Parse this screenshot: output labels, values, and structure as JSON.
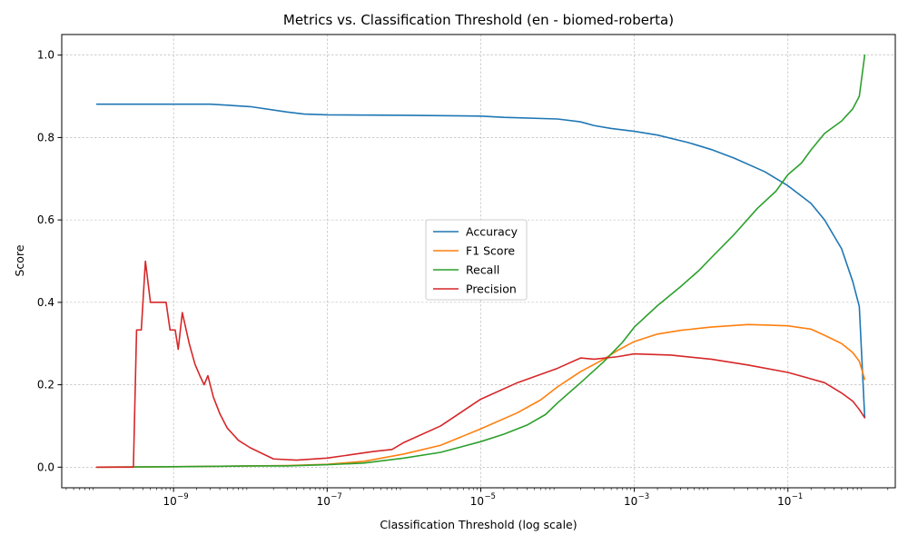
{
  "chart_data": {
    "type": "line",
    "title": "Metrics vs. Classification Threshold (en - biomed-roberta)",
    "xlabel": "Classification Threshold (log scale)",
    "ylabel": "Score",
    "xscale": "log",
    "xlim": [
      3.5e-11,
      2.5
    ],
    "ylim": [
      -0.05,
      1.05
    ],
    "grid": true,
    "legend_position": "center",
    "x_ticks": [
      {
        "value": 1e-09,
        "label": "10"
      },
      {
        "value": 1e-07,
        "label": "10"
      },
      {
        "value": 1e-05,
        "label": "10"
      },
      {
        "value": 0.001,
        "label": "10"
      },
      {
        "value": 0.1,
        "label": "10"
      }
    ],
    "x_tick_exponents": [
      "−9",
      "−7",
      "−5",
      "−3",
      "−1"
    ],
    "y_ticks": [
      "0.0",
      "0.2",
      "0.4",
      "0.6",
      "0.8",
      "1.0"
    ],
    "series": [
      {
        "name": "Accuracy",
        "color": "#1f77b4",
        "points": [
          [
            1e-10,
            0.881
          ],
          [
            1e-09,
            0.881
          ],
          [
            3e-09,
            0.881
          ],
          [
            1e-08,
            0.875
          ],
          [
            3e-08,
            0.862
          ],
          [
            5e-08,
            0.857
          ],
          [
            1e-07,
            0.855
          ],
          [
            1e-06,
            0.854
          ],
          [
            1e-05,
            0.852
          ],
          [
            2e-05,
            0.849
          ],
          [
            0.0001,
            0.845
          ],
          [
            0.0002,
            0.838
          ],
          [
            0.0003,
            0.829
          ],
          [
            0.0005,
            0.822
          ],
          [
            0.001,
            0.815
          ],
          [
            0.002,
            0.806
          ],
          [
            0.005,
            0.788
          ],
          [
            0.01,
            0.771
          ],
          [
            0.02,
            0.75
          ],
          [
            0.05,
            0.717
          ],
          [
            0.1,
            0.683
          ],
          [
            0.2,
            0.64
          ],
          [
            0.3,
            0.6
          ],
          [
            0.5,
            0.53
          ],
          [
            0.7,
            0.45
          ],
          [
            0.85,
            0.39
          ],
          [
            1.0,
            0.12
          ]
        ]
      },
      {
        "name": "F1 Score",
        "color": "#ff7f0e",
        "points": [
          [
            1e-10,
            0.0
          ],
          [
            1e-09,
            0.001
          ],
          [
            1e-08,
            0.003
          ],
          [
            3e-08,
            0.004
          ],
          [
            1e-07,
            0.007
          ],
          [
            3e-07,
            0.014
          ],
          [
            1e-06,
            0.032
          ],
          [
            3e-06,
            0.053
          ],
          [
            1e-05,
            0.093
          ],
          [
            3e-05,
            0.132
          ],
          [
            6e-05,
            0.163
          ],
          [
            0.0001,
            0.195
          ],
          [
            0.0002,
            0.232
          ],
          [
            0.0004,
            0.262
          ],
          [
            0.0006,
            0.283
          ],
          [
            0.001,
            0.305
          ],
          [
            0.002,
            0.323
          ],
          [
            0.004,
            0.332
          ],
          [
            0.01,
            0.34
          ],
          [
            0.03,
            0.346
          ],
          [
            0.05,
            0.345
          ],
          [
            0.1,
            0.343
          ],
          [
            0.2,
            0.335
          ],
          [
            0.3,
            0.32
          ],
          [
            0.5,
            0.3
          ],
          [
            0.7,
            0.278
          ],
          [
            0.85,
            0.257
          ],
          [
            1.0,
            0.213
          ]
        ]
      },
      {
        "name": "Recall",
        "color": "#2ca02c",
        "points": [
          [
            1e-10,
            0.0
          ],
          [
            1e-09,
            0.001
          ],
          [
            1e-08,
            0.003
          ],
          [
            3e-08,
            0.003
          ],
          [
            1e-07,
            0.006
          ],
          [
            3e-07,
            0.01
          ],
          [
            1e-06,
            0.022
          ],
          [
            3e-06,
            0.036
          ],
          [
            1e-05,
            0.062
          ],
          [
            2e-05,
            0.08
          ],
          [
            4e-05,
            0.102
          ],
          [
            7e-05,
            0.128
          ],
          [
            0.0001,
            0.156
          ],
          [
            0.0002,
            0.205
          ],
          [
            0.0004,
            0.256
          ],
          [
            0.0007,
            0.303
          ],
          [
            0.001,
            0.34
          ],
          [
            0.002,
            0.392
          ],
          [
            0.004,
            0.438
          ],
          [
            0.007,
            0.478
          ],
          [
            0.01,
            0.508
          ],
          [
            0.02,
            0.565
          ],
          [
            0.04,
            0.628
          ],
          [
            0.07,
            0.67
          ],
          [
            0.1,
            0.71
          ],
          [
            0.15,
            0.738
          ],
          [
            0.2,
            0.77
          ],
          [
            0.3,
            0.81
          ],
          [
            0.5,
            0.84
          ],
          [
            0.7,
            0.87
          ],
          [
            0.85,
            0.9
          ],
          [
            1.0,
            1.0
          ]
        ]
      },
      {
        "name": "Precision",
        "color": "#d62728",
        "points": [
          [
            1e-10,
            0.0
          ],
          [
            3e-10,
            0.0
          ],
          [
            3.3e-10,
            0.333
          ],
          [
            3.8e-10,
            0.333
          ],
          [
            4.3e-10,
            0.5
          ],
          [
            5e-10,
            0.4
          ],
          [
            8e-10,
            0.4
          ],
          [
            9e-10,
            0.333
          ],
          [
            1.05e-09,
            0.333
          ],
          [
            1.15e-09,
            0.286
          ],
          [
            1.3e-09,
            0.375
          ],
          [
            1.6e-09,
            0.3
          ],
          [
            1.9e-09,
            0.25
          ],
          [
            2.2e-09,
            0.222
          ],
          [
            2.5e-09,
            0.2
          ],
          [
            2.8e-09,
            0.222
          ],
          [
            3.3e-09,
            0.17
          ],
          [
            4e-09,
            0.13
          ],
          [
            5e-09,
            0.095
          ],
          [
            7e-09,
            0.065
          ],
          [
            1e-08,
            0.047
          ],
          [
            2e-08,
            0.02
          ],
          [
            4e-08,
            0.017
          ],
          [
            1e-07,
            0.022
          ],
          [
            2e-07,
            0.03
          ],
          [
            4e-07,
            0.038
          ],
          [
            7e-07,
            0.043
          ],
          [
            1e-06,
            0.06
          ],
          [
            3e-06,
            0.1
          ],
          [
            1e-05,
            0.165
          ],
          [
            3e-05,
            0.205
          ],
          [
            0.0001,
            0.24
          ],
          [
            0.0002,
            0.265
          ],
          [
            0.0003,
            0.262
          ],
          [
            0.0006,
            0.268
          ],
          [
            0.001,
            0.275
          ],
          [
            0.003,
            0.272
          ],
          [
            0.01,
            0.262
          ],
          [
            0.03,
            0.248
          ],
          [
            0.1,
            0.23
          ],
          [
            0.3,
            0.205
          ],
          [
            0.5,
            0.18
          ],
          [
            0.7,
            0.16
          ],
          [
            0.85,
            0.14
          ],
          [
            1.0,
            0.12
          ]
        ]
      }
    ]
  }
}
